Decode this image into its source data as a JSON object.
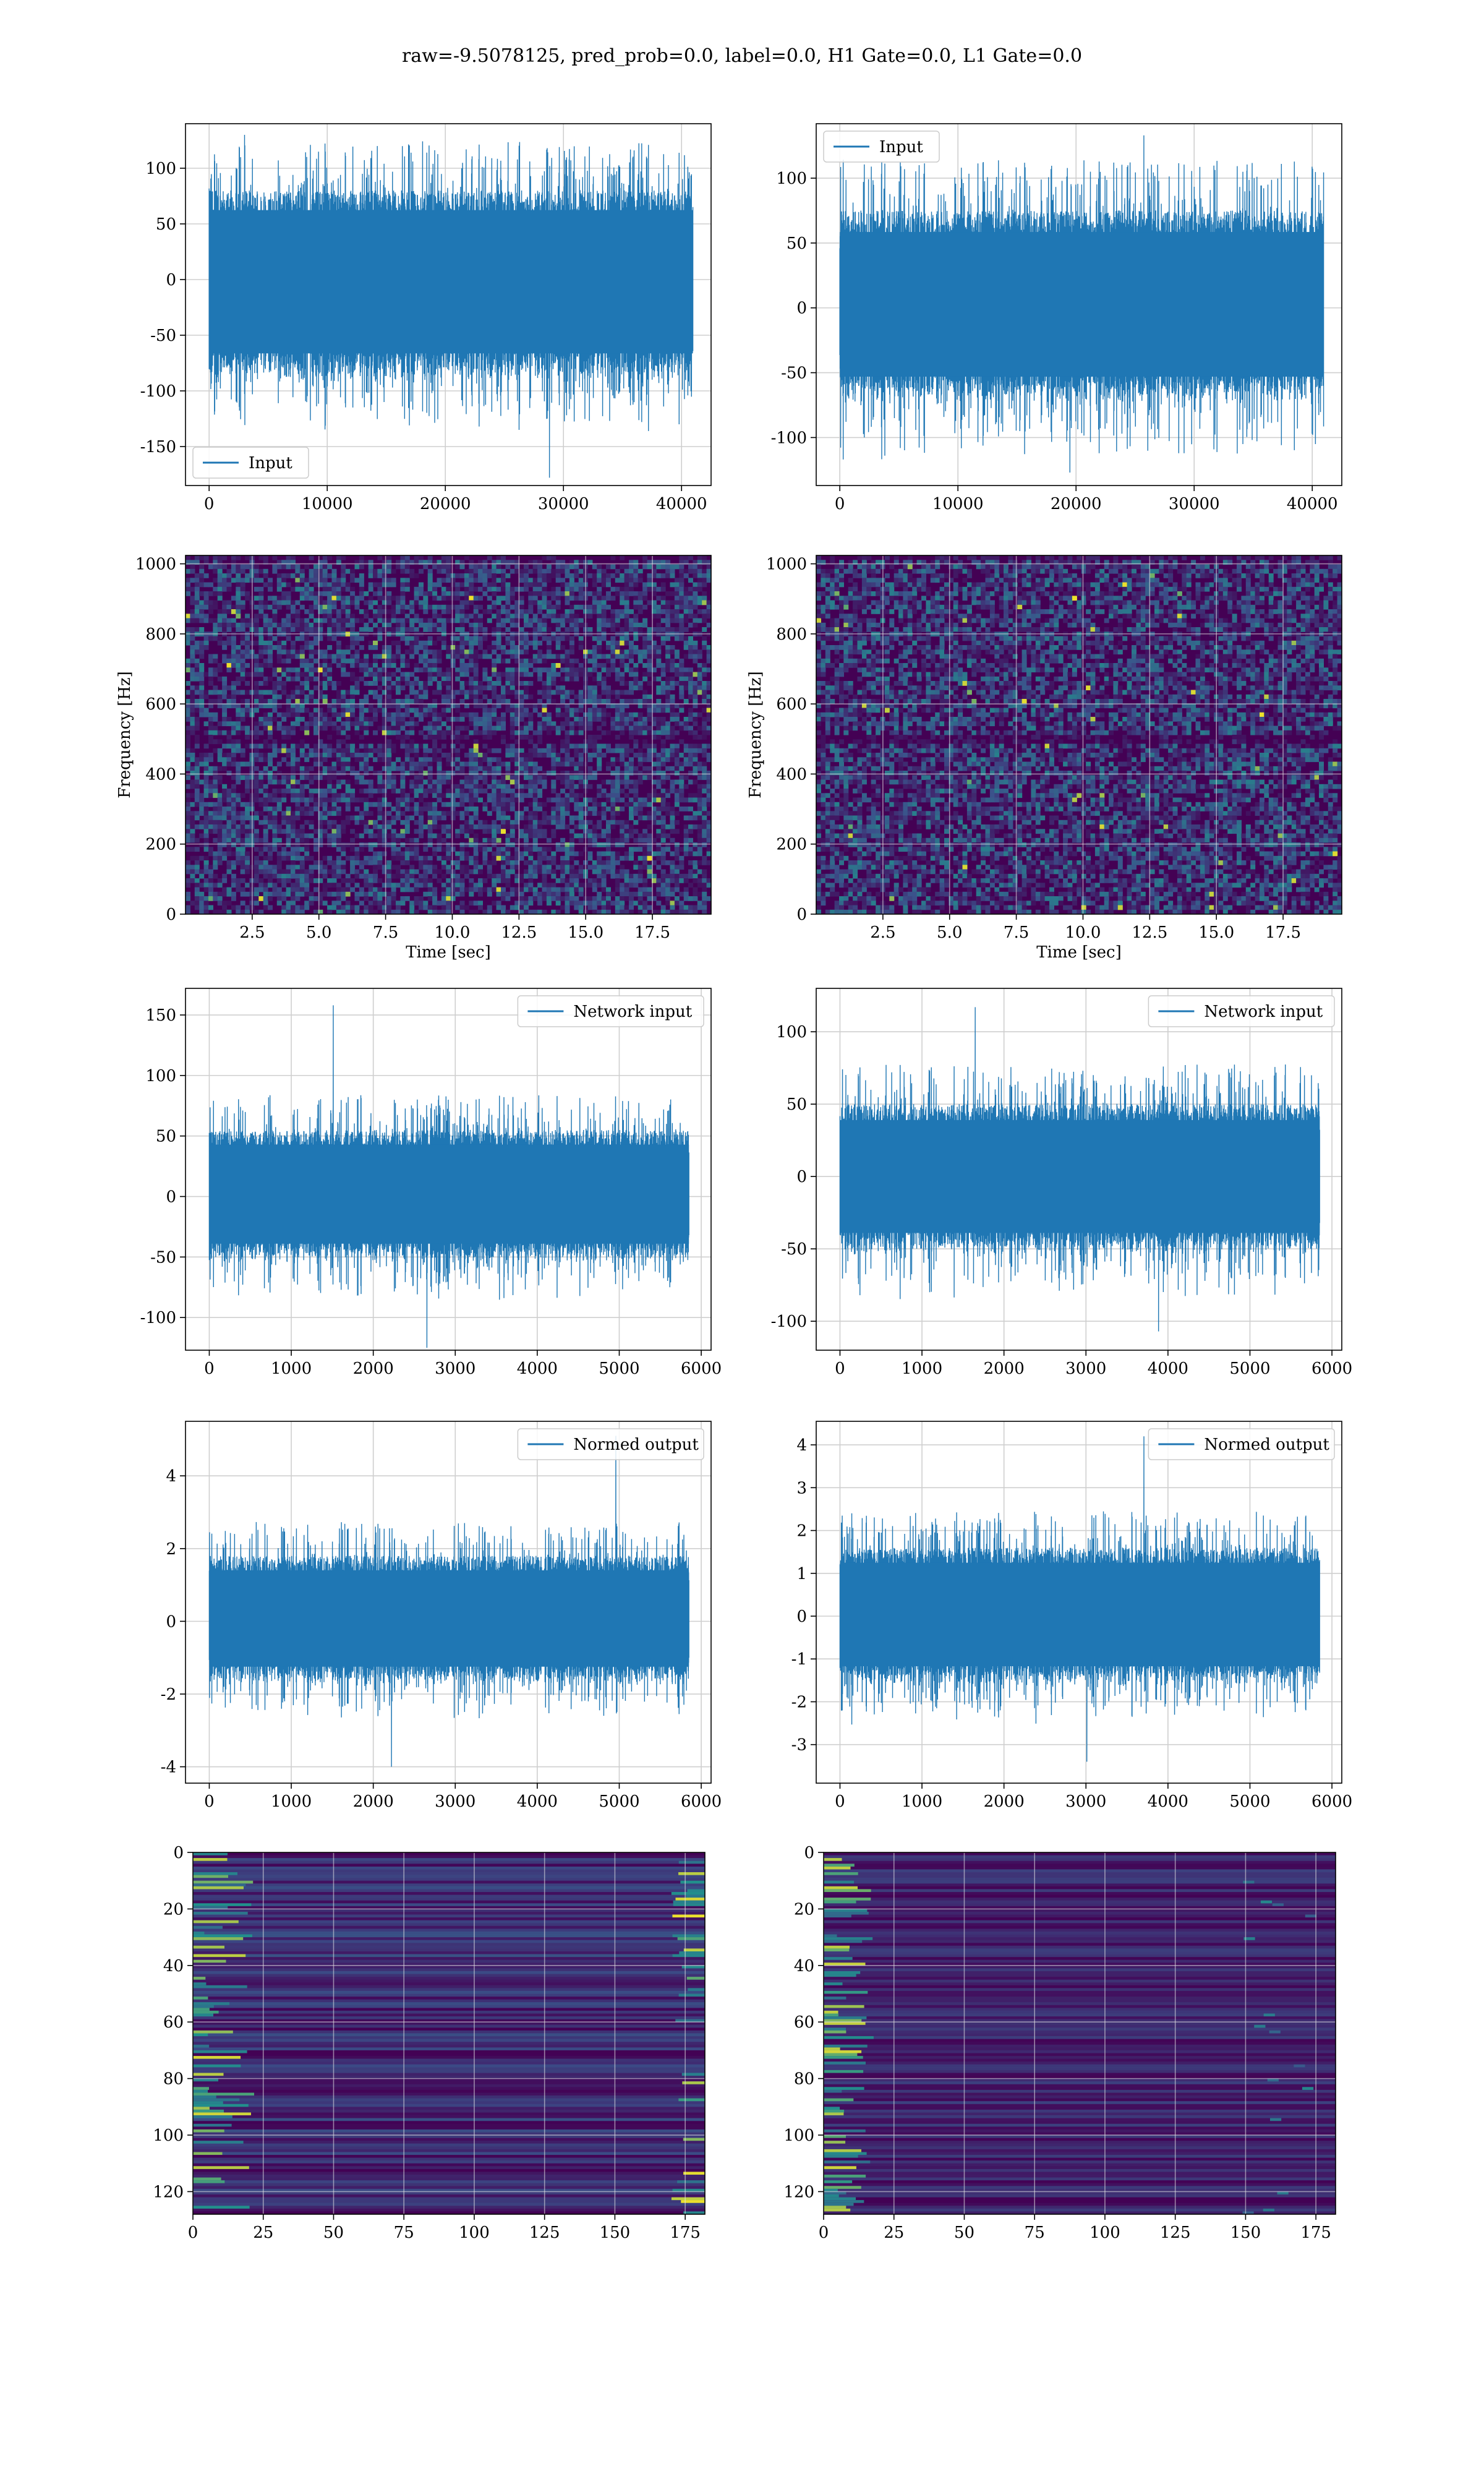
{
  "figure": {
    "suptitle": "raw=-9.5078125, pred_prob=0.0, label=0.0, H1 Gate=0.0, L1 Gate=0.0"
  },
  "colors": {
    "series": "#1f77b4",
    "grid": "#cfcfcf",
    "heat_low": "#440154",
    "heat_mid": "#21918c",
    "heat_high": "#fde725"
  },
  "chart_data": [
    {
      "id": "h1-input",
      "type": "line",
      "legend": "Input",
      "legend_loc": "lower-left",
      "xlim": [
        -2000,
        42500
      ],
      "ylim": [
        -185,
        140
      ],
      "xticks": [
        0,
        10000,
        20000,
        30000,
        40000
      ],
      "yticks": [
        -150,
        -100,
        -50,
        0,
        50,
        100
      ],
      "grid": true,
      "series": {
        "x_range": [
          0,
          40960
        ],
        "band": [
          -85,
          80
        ],
        "peak_max": 130,
        "peak_min": -178
      }
    },
    {
      "id": "l1-input",
      "type": "line",
      "legend": "Input",
      "legend_loc": "upper-left",
      "xlim": [
        -2000,
        42500
      ],
      "ylim": [
        -137,
        142
      ],
      "xticks": [
        0,
        10000,
        20000,
        30000,
        40000
      ],
      "yticks": [
        -100,
        -50,
        0,
        50,
        100
      ],
      "grid": true,
      "series": {
        "x_range": [
          0,
          40960
        ],
        "band": [
          -68,
          75
        ],
        "peak_max": 133,
        "peak_min": -127
      }
    },
    {
      "id": "h1-spectrogram",
      "type": "heatmap",
      "xlabel": "Time [sec]",
      "ylabel": "Frequency [Hz]",
      "xlim": [
        0,
        19.7
      ],
      "ylim": [
        0,
        1024
      ],
      "xticks": [
        2.5,
        5.0,
        7.5,
        10.0,
        12.5,
        15.0,
        17.5
      ],
      "yticks": [
        0,
        200,
        400,
        600,
        800,
        1000
      ],
      "grid": true
    },
    {
      "id": "l1-spectrogram",
      "type": "heatmap",
      "xlabel": "Time [sec]",
      "ylabel": "Frequency [Hz]",
      "xlim": [
        0,
        19.7
      ],
      "ylim": [
        0,
        1024
      ],
      "xticks": [
        2.5,
        5.0,
        7.5,
        10.0,
        12.5,
        15.0,
        17.5
      ],
      "yticks": [
        0,
        200,
        400,
        600,
        800,
        1000
      ],
      "grid": true
    },
    {
      "id": "h1-network-input",
      "type": "line",
      "legend": "Network input",
      "legend_loc": "upper-right",
      "xlim": [
        -290,
        6120
      ],
      "ylim": [
        -127,
        172
      ],
      "xticks": [
        0,
        1000,
        2000,
        3000,
        4000,
        5000,
        6000
      ],
      "yticks": [
        -100,
        -50,
        0,
        50,
        100,
        150
      ],
      "grid": true,
      "series": {
        "x_range": [
          0,
          5850
        ],
        "band": [
          -50,
          55
        ],
        "peak_max": 158,
        "peak_min": -125
      }
    },
    {
      "id": "l1-network-input",
      "type": "line",
      "legend": "Network input",
      "legend_loc": "upper-right",
      "xlim": [
        -290,
        6120
      ],
      "ylim": [
        -120,
        130
      ],
      "xticks": [
        0,
        1000,
        2000,
        3000,
        4000,
        5000,
        6000
      ],
      "yticks": [
        -100,
        -50,
        0,
        50,
        100
      ],
      "grid": true,
      "series": {
        "x_range": [
          0,
          5850
        ],
        "band": [
          -50,
          50
        ],
        "peak_max": 117,
        "peak_min": -107
      }
    },
    {
      "id": "h1-normed-output",
      "type": "line",
      "legend": "Normed output",
      "legend_loc": "upper-right",
      "xlim": [
        -290,
        6120
      ],
      "ylim": [
        -4.45,
        5.5
      ],
      "xticks": [
        0,
        1000,
        2000,
        3000,
        4000,
        5000,
        6000
      ],
      "yticks": [
        -4,
        -2,
        0,
        2,
        4
      ],
      "grid": true,
      "series": {
        "x_range": [
          0,
          5850
        ],
        "band": [
          -1.6,
          1.8
        ],
        "peak_max": 5.1,
        "peak_min": -4.0
      }
    },
    {
      "id": "l1-normed-output",
      "type": "line",
      "legend": "Normed output",
      "legend_loc": "upper-right",
      "xlim": [
        -290,
        6120
      ],
      "ylim": [
        -3.9,
        4.55
      ],
      "xticks": [
        0,
        1000,
        2000,
        3000,
        4000,
        5000,
        6000
      ],
      "yticks": [
        -3,
        -2,
        -1,
        0,
        1,
        2,
        3,
        4
      ],
      "grid": true,
      "series": {
        "x_range": [
          0,
          5850
        ],
        "band": [
          -1.5,
          1.6
        ],
        "peak_max": 4.2,
        "peak_min": -3.4
      }
    },
    {
      "id": "h1-feature-map",
      "type": "heatmap",
      "xlim": [
        0,
        182
      ],
      "ylim": [
        128,
        0
      ],
      "xticks": [
        0,
        25,
        50,
        75,
        100,
        125,
        150,
        175
      ],
      "yticks": [
        0,
        20,
        40,
        60,
        80,
        100,
        120
      ],
      "grid": true
    },
    {
      "id": "l1-feature-map",
      "type": "heatmap",
      "xlim": [
        0,
        182
      ],
      "ylim": [
        128,
        0
      ],
      "xticks": [
        0,
        25,
        50,
        75,
        100,
        125,
        150,
        175
      ],
      "yticks": [
        0,
        20,
        40,
        60,
        80,
        100,
        120
      ],
      "grid": true
    }
  ]
}
